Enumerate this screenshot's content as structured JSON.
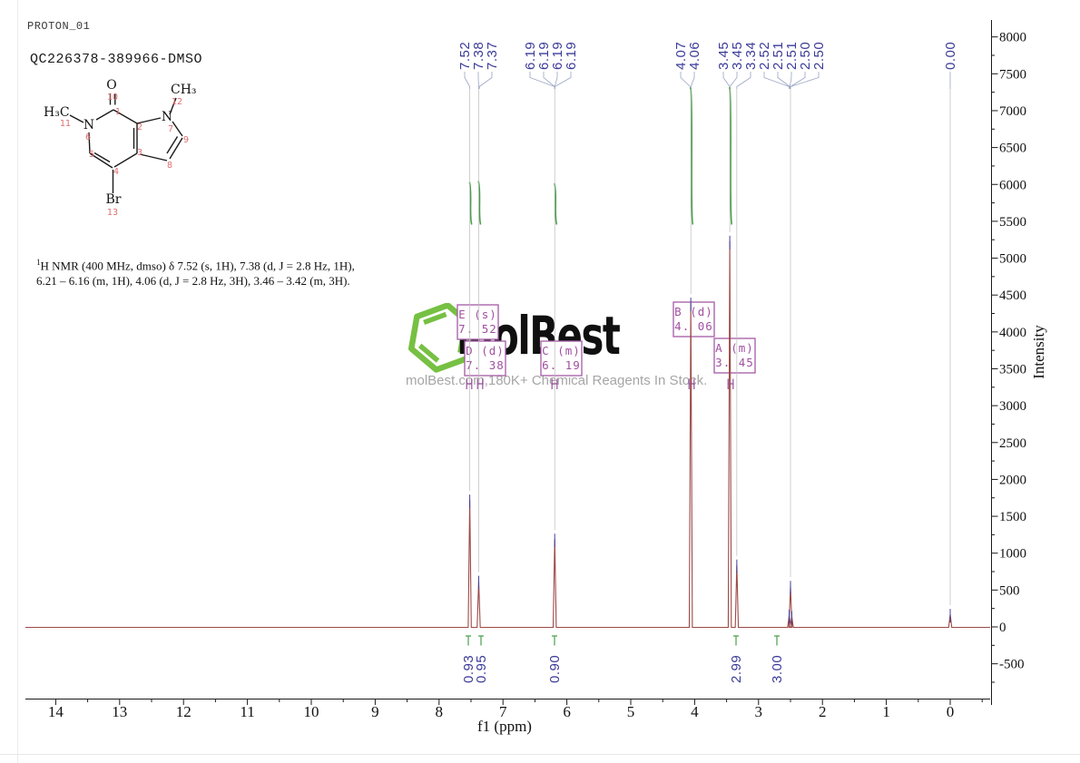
{
  "header": {
    "experiment": "PROTON_01",
    "sample": "QC226378-389966-DMSO"
  },
  "nmr_summary": {
    "sup": "1",
    "line1": "H NMR (400 MHz, dmso) δ 7.52 (s, 1H), 7.38 (d, J = 2.8 Hz, 1H),",
    "line2": "6.21 – 6.16 (m, 1H), 4.06 (d, J = 2.8 Hz, 3H), 3.46 – 3.42 (m, 3H)."
  },
  "molecule": {
    "atoms": [
      {
        "symbol": "O",
        "num": "10"
      },
      {
        "symbol": "CH₃",
        "num": "12"
      },
      {
        "symbol": "H₃C",
        "num": "11"
      },
      {
        "symbol": "N",
        "num": "6"
      },
      {
        "symbol": "N",
        "num": "7"
      },
      {
        "symbol": "Br",
        "num": "13"
      }
    ],
    "carbon_numbers": [
      "1",
      "2",
      "3",
      "4",
      "5",
      "8",
      "9"
    ]
  },
  "watermark": {
    "logo_text": "MolBest",
    "tagline": "molBest.com,180K+ Chemical Reagents In Stock.",
    "hexagon_color": "#76c043"
  },
  "chart_data": {
    "type": "line",
    "description": "1H NMR spectrum (400 MHz, dmso)",
    "xlabel": "f1 (ppm)",
    "ylabel": "Intensity",
    "x_ticks": [
      14,
      13,
      12,
      11,
      10,
      9,
      8,
      7,
      6,
      5,
      4,
      3,
      2,
      1,
      0
    ],
    "xlim": [
      14.5,
      -0.6
    ],
    "y_ticks": [
      8000,
      7500,
      7000,
      6500,
      6000,
      5500,
      5000,
      4500,
      4000,
      3500,
      3000,
      2500,
      2000,
      1500,
      1000,
      500,
      0,
      -500
    ],
    "ylim": [
      -500,
      8000
    ],
    "peaks": [
      {
        "ppm": 7.52,
        "intensity": 1720
      },
      {
        "ppm": 7.38,
        "intensity": 620
      },
      {
        "ppm": 6.19,
        "intensity": 1190
      },
      {
        "ppm": 4.06,
        "intensity": 4390
      },
      {
        "ppm": 3.45,
        "intensity": 5230
      },
      {
        "ppm": 3.34,
        "intensity": 840
      },
      {
        "ppm": 2.52,
        "intensity": 160
      },
      {
        "ppm": 2.5,
        "intensity": 550
      },
      {
        "ppm": 2.48,
        "intensity": 140
      },
      {
        "ppm": 0.0,
        "intensity": 170
      }
    ],
    "peak_labels": [
      {
        "text": "7.52",
        "ppm": 7.52
      },
      {
        "text": "7.38",
        "ppm": 7.38
      },
      {
        "text": "7.37",
        "ppm": 7.37
      },
      {
        "text": "6.19",
        "ppm": 6.19
      },
      {
        "text": "6.19",
        "ppm": 6.19
      },
      {
        "text": "6.19",
        "ppm": 6.19
      },
      {
        "text": "6.19",
        "ppm": 6.19
      },
      {
        "text": "4.07",
        "ppm": 4.07
      },
      {
        "text": "4.06",
        "ppm": 4.06
      },
      {
        "text": "3.45",
        "ppm": 3.45
      },
      {
        "text": "3.45",
        "ppm": 3.45
      },
      {
        "text": "3.34",
        "ppm": 3.34
      },
      {
        "text": "2.52",
        "ppm": 2.52
      },
      {
        "text": "2.51",
        "ppm": 2.51
      },
      {
        "text": "2.51",
        "ppm": 2.51
      },
      {
        "text": "2.50",
        "ppm": 2.5
      },
      {
        "text": "2.50",
        "ppm": 2.5
      },
      {
        "text": "0.00",
        "ppm": 0.0
      }
    ],
    "integrations": [
      {
        "ppm": 7.52,
        "value": "0.93"
      },
      {
        "ppm": 7.38,
        "value": "0.95"
      },
      {
        "ppm": 6.19,
        "value": "0.90"
      },
      {
        "ppm": 4.06,
        "value": "2.99"
      },
      {
        "ppm": 3.45,
        "value": "3.00"
      }
    ],
    "assignments": [
      {
        "letter": "E",
        "multiplicity": "(s)",
        "shift": "7. 52"
      },
      {
        "letter": "D",
        "multiplicity": "(d)",
        "shift": "7. 38"
      },
      {
        "letter": "C",
        "multiplicity": "(m)",
        "shift": "6. 19"
      },
      {
        "letter": "B",
        "multiplicity": "(d)",
        "shift": "4. 06"
      },
      {
        "letter": "A",
        "multiplicity": "(m)",
        "shift": "3. 45"
      }
    ],
    "colors": {
      "spectrum": "#9c4a46",
      "integral": "#4aa04a",
      "peak_label": "#3b3b99",
      "assignment_box": "#a45aa6",
      "axis": "#1a1a1a"
    }
  }
}
